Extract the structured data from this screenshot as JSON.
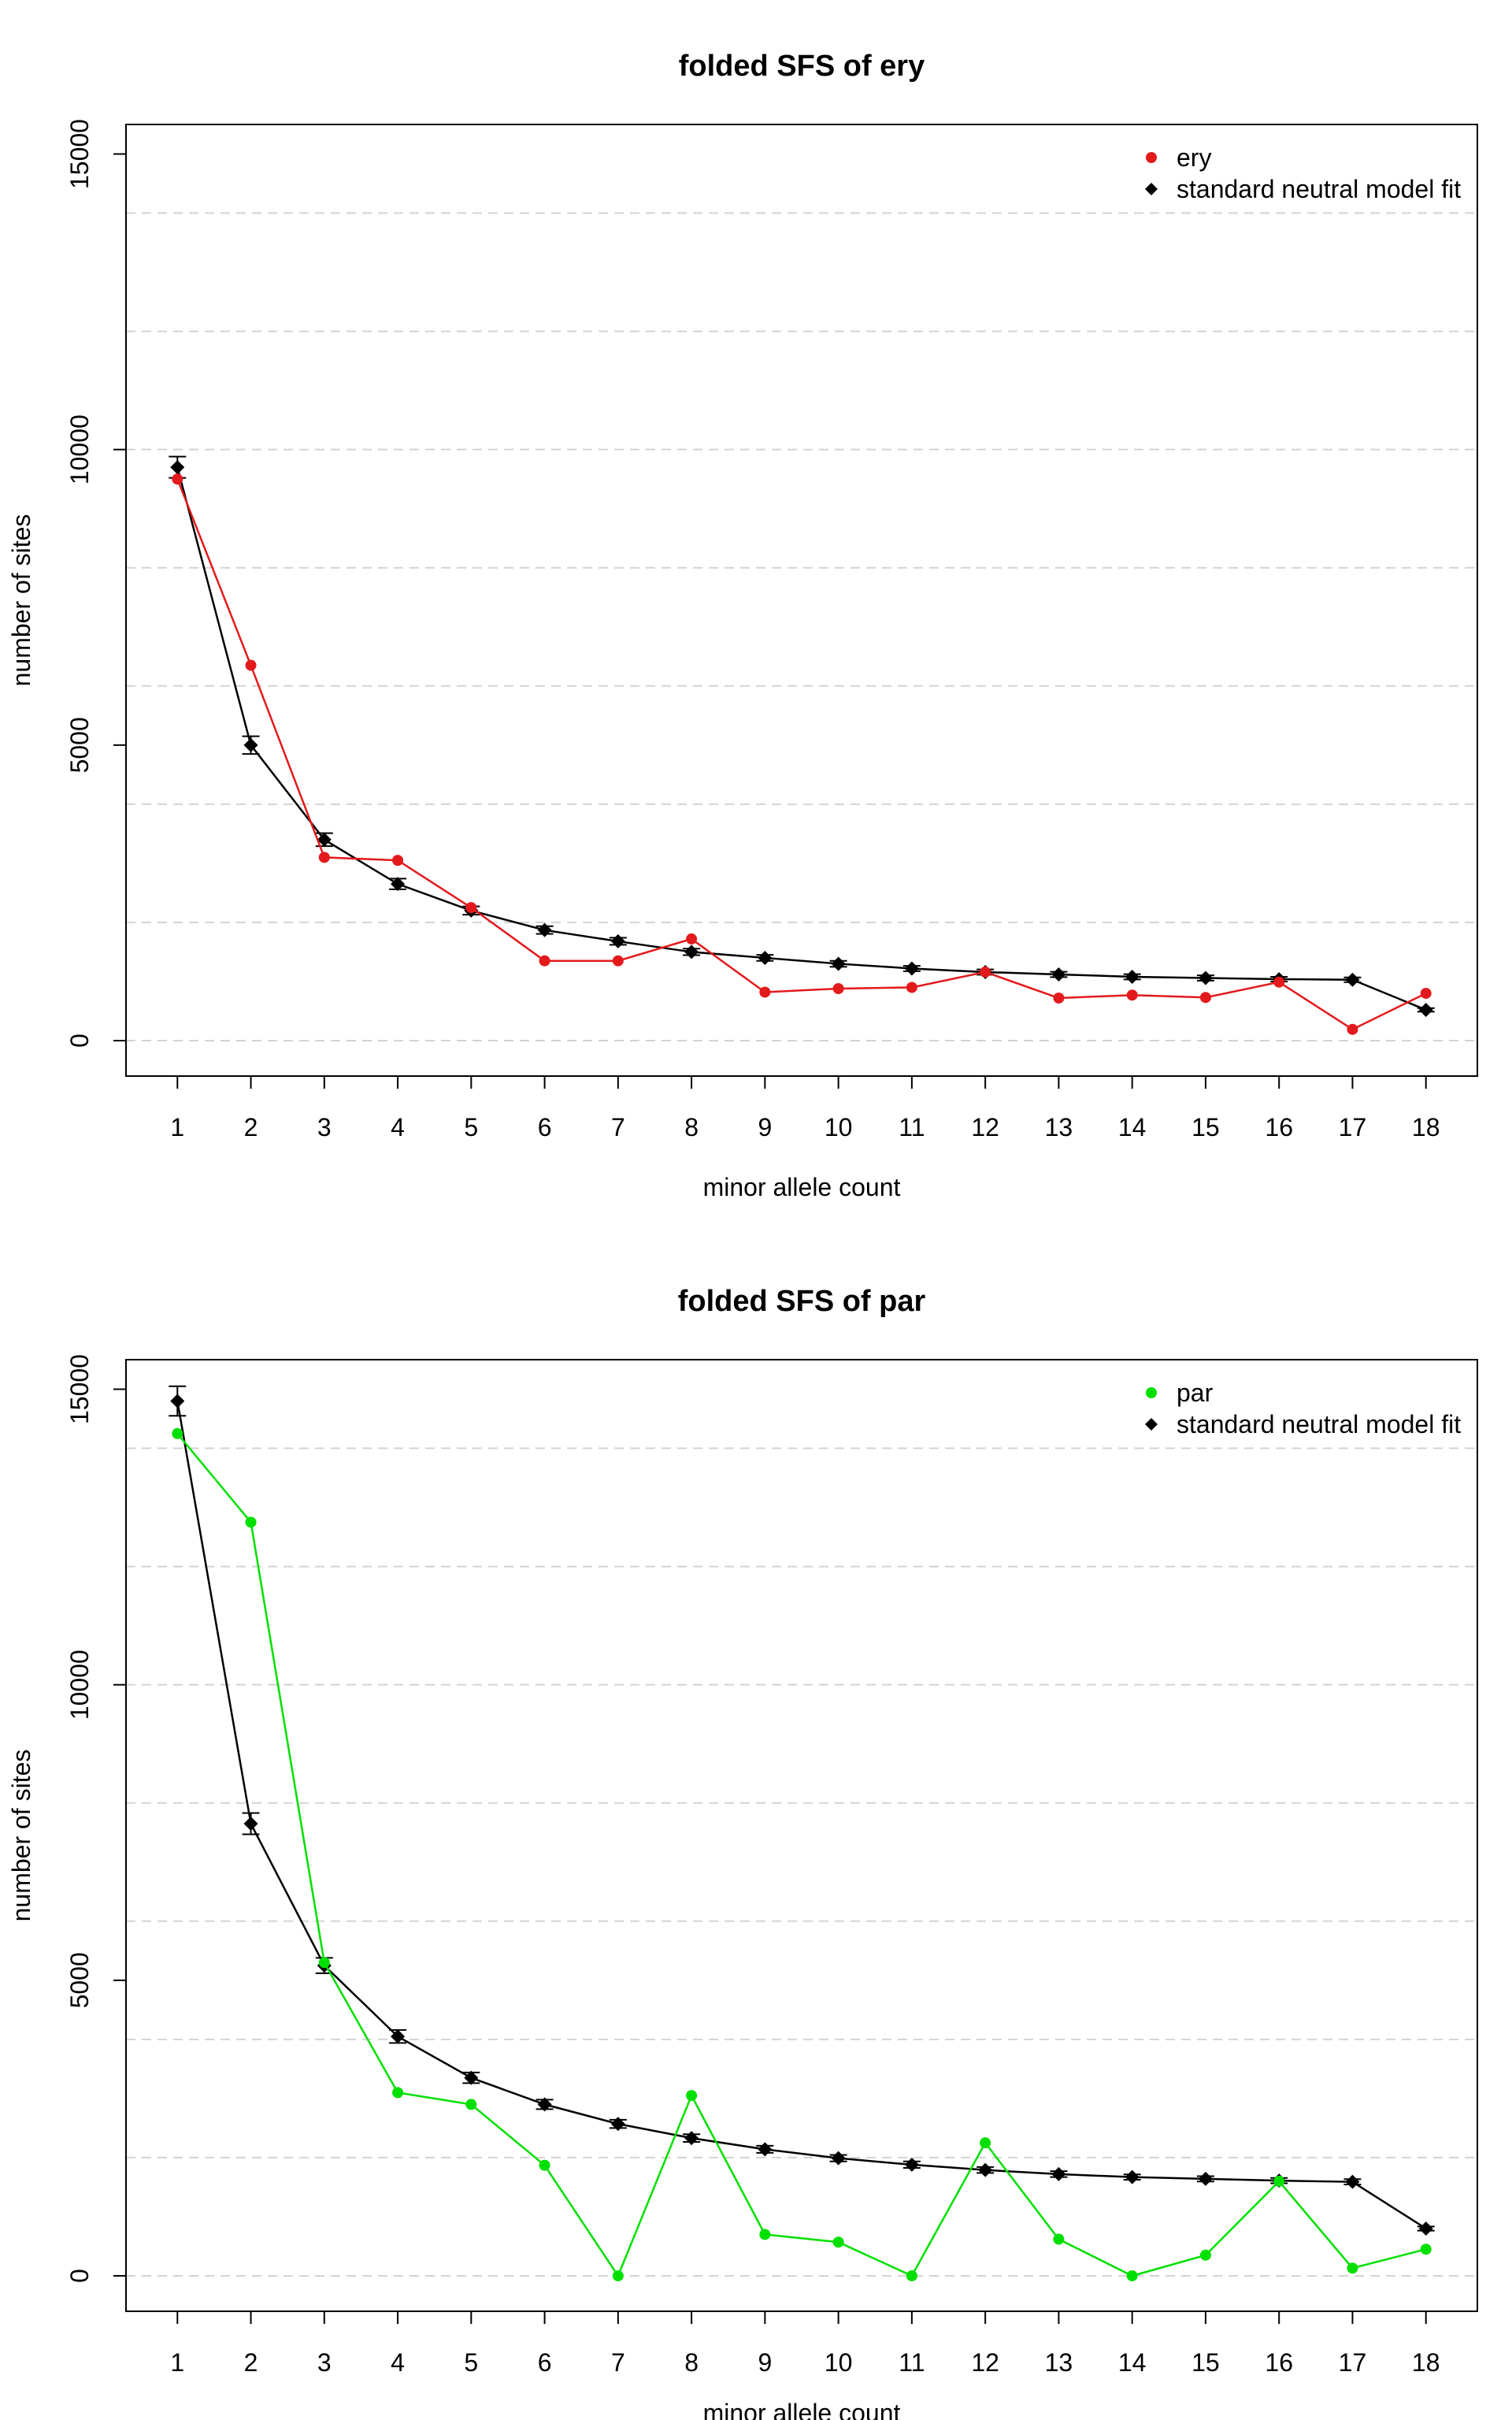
{
  "chart_data": [
    {
      "type": "line",
      "title": "folded SFS of ery",
      "xlabel": "minor allele count",
      "ylabel": "number of sites",
      "categories": [
        "1",
        "2",
        "3",
        "4",
        "5",
        "6",
        "7",
        "8",
        "9",
        "10",
        "11",
        "12",
        "13",
        "14",
        "15",
        "16",
        "17",
        "18"
      ],
      "ylim": [
        -600,
        15500
      ],
      "yticks": [
        0,
        5000,
        10000,
        15000
      ],
      "ytick_labels": [
        "0",
        "5000",
        "10000",
        "15000"
      ],
      "gridlines": [
        0,
        2000,
        4000,
        6000,
        8000,
        10000,
        12000,
        14000
      ],
      "grid": true,
      "legend_position": "top-right",
      "series": [
        {
          "name": "ery",
          "color": "#e31a1c",
          "marker": "circle",
          "values": [
            9500,
            6350,
            3100,
            3050,
            2250,
            1350,
            1350,
            1720,
            820,
            880,
            900,
            1160,
            720,
            770,
            730,
            990,
            190,
            800
          ]
        },
        {
          "name": "standard neutral model fit",
          "color": "#000000",
          "marker": "diamond",
          "values": [
            9700,
            5000,
            3400,
            2650,
            2200,
            1870,
            1680,
            1500,
            1400,
            1300,
            1220,
            1160,
            1120,
            1080,
            1060,
            1040,
            1030,
            520
          ],
          "errors": [
            180,
            150,
            110,
            90,
            70,
            65,
            60,
            55,
            50,
            50,
            45,
            45,
            45,
            45,
            45,
            40,
            40,
            30
          ]
        }
      ]
    },
    {
      "type": "line",
      "title": "folded SFS of par",
      "xlabel": "minor allele count",
      "ylabel": "number of sites",
      "categories": [
        "1",
        "2",
        "3",
        "4",
        "5",
        "6",
        "7",
        "8",
        "9",
        "10",
        "11",
        "12",
        "13",
        "14",
        "15",
        "16",
        "17",
        "18"
      ],
      "ylim": [
        -600,
        15500
      ],
      "yticks": [
        0,
        5000,
        10000,
        15000
      ],
      "ytick_labels": [
        "0",
        "5000",
        "10000",
        "15000"
      ],
      "gridlines": [
        0,
        2000,
        4000,
        6000,
        8000,
        10000,
        12000,
        14000
      ],
      "grid": true,
      "legend_position": "top-right",
      "series": [
        {
          "name": "par",
          "color": "#00e000",
          "marker": "circle",
          "values": [
            14250,
            12750,
            5300,
            3100,
            2900,
            1870,
            0,
            3050,
            700,
            570,
            0,
            2250,
            620,
            0,
            350,
            1600,
            130,
            450
          ]
        },
        {
          "name": "standard neutral model fit",
          "color": "#000000",
          "marker": "diamond",
          "values": [
            14800,
            7650,
            5250,
            4050,
            3350,
            2900,
            2570,
            2330,
            2140,
            1990,
            1880,
            1790,
            1720,
            1670,
            1640,
            1610,
            1590,
            800
          ],
          "errors": [
            250,
            180,
            130,
            110,
            90,
            80,
            70,
            65,
            60,
            55,
            55,
            50,
            50,
            45,
            45,
            45,
            45,
            35
          ]
        }
      ]
    }
  ]
}
